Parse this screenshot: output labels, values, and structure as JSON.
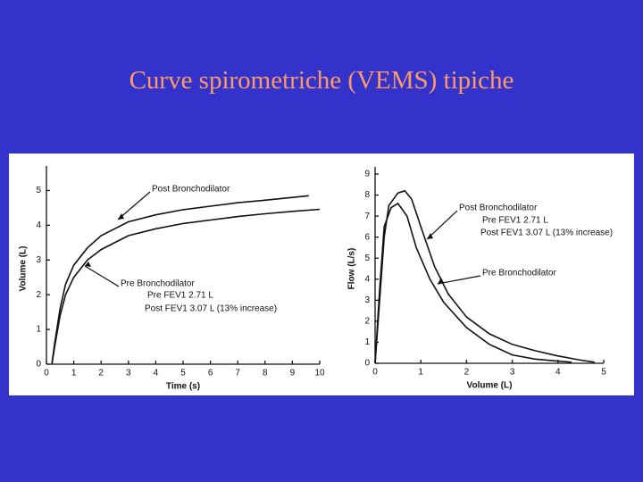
{
  "title": "Curve spirometriche (VEMS) tipiche",
  "chart_data": [
    {
      "type": "line",
      "x_label": "Time (s)",
      "y_label": "Volume (L)",
      "xlim": [
        0,
        10
      ],
      "ylim": [
        0,
        5.5
      ],
      "xticks": [
        0,
        1,
        2,
        3,
        4,
        5,
        6,
        7,
        8,
        9,
        10
      ],
      "yticks": [
        0,
        1,
        2,
        3,
        4,
        5
      ],
      "series": [
        {
          "name": "Post Bronchodilator",
          "color": "#111111",
          "x": [
            0.2,
            0.3,
            0.5,
            0.7,
            1,
            1.5,
            2,
            3,
            4,
            5,
            6,
            7,
            8,
            9,
            9.6
          ],
          "values": [
            0,
            0.6,
            1.6,
            2.3,
            2.85,
            3.35,
            3.7,
            4.1,
            4.3,
            4.45,
            4.55,
            4.65,
            4.72,
            4.8,
            4.85
          ]
        },
        {
          "name": "Pre Bronchodilator",
          "color": "#111111",
          "x": [
            0.2,
            0.3,
            0.5,
            0.7,
            1,
            1.5,
            2,
            3,
            4,
            5,
            6,
            7,
            8,
            9,
            10
          ],
          "values": [
            0,
            0.5,
            1.4,
            2.0,
            2.5,
            3.0,
            3.3,
            3.7,
            3.9,
            4.05,
            4.15,
            4.25,
            4.33,
            4.4,
            4.46
          ]
        }
      ],
      "annotations": [
        "Pre  FEV1  2.71 L",
        "Post  FEV1  3.07 L (13% increase)"
      ]
    },
    {
      "type": "line",
      "x_label": "Volume (L)",
      "y_label": "Flow (L/s)",
      "xlim": [
        0,
        5
      ],
      "ylim": [
        0,
        9
      ],
      "xticks": [
        0,
        1,
        2,
        3,
        4,
        5
      ],
      "yticks": [
        0,
        1,
        2,
        3,
        4,
        5,
        6,
        7,
        8,
        9
      ],
      "series": [
        {
          "name": "Post Bronchodilator",
          "color": "#111111",
          "x": [
            0,
            0.1,
            0.2,
            0.3,
            0.5,
            0.65,
            0.8,
            1.0,
            1.3,
            1.6,
            2.0,
            2.5,
            3.0,
            3.5,
            4.0,
            4.5,
            4.8
          ],
          "values": [
            0,
            3,
            6,
            7.5,
            8.1,
            8.2,
            7.8,
            6.5,
            4.6,
            3.3,
            2.2,
            1.4,
            0.9,
            0.6,
            0.35,
            0.15,
            0.05
          ]
        },
        {
          "name": "Pre Bronchodilator",
          "color": "#111111",
          "x": [
            0,
            0.1,
            0.2,
            0.35,
            0.5,
            0.7,
            0.9,
            1.2,
            1.5,
            2.0,
            2.5,
            3.0,
            3.5,
            4.0,
            4.3
          ],
          "values": [
            0,
            3.5,
            6.5,
            7.4,
            7.6,
            7.0,
            5.5,
            4.0,
            2.9,
            1.7,
            0.9,
            0.4,
            0.2,
            0.1,
            0.05
          ]
        }
      ],
      "annotations": [
        "Pre  FEV1  2.71 L",
        "Post  FEV1  3.07 L (13% increase)"
      ]
    }
  ]
}
